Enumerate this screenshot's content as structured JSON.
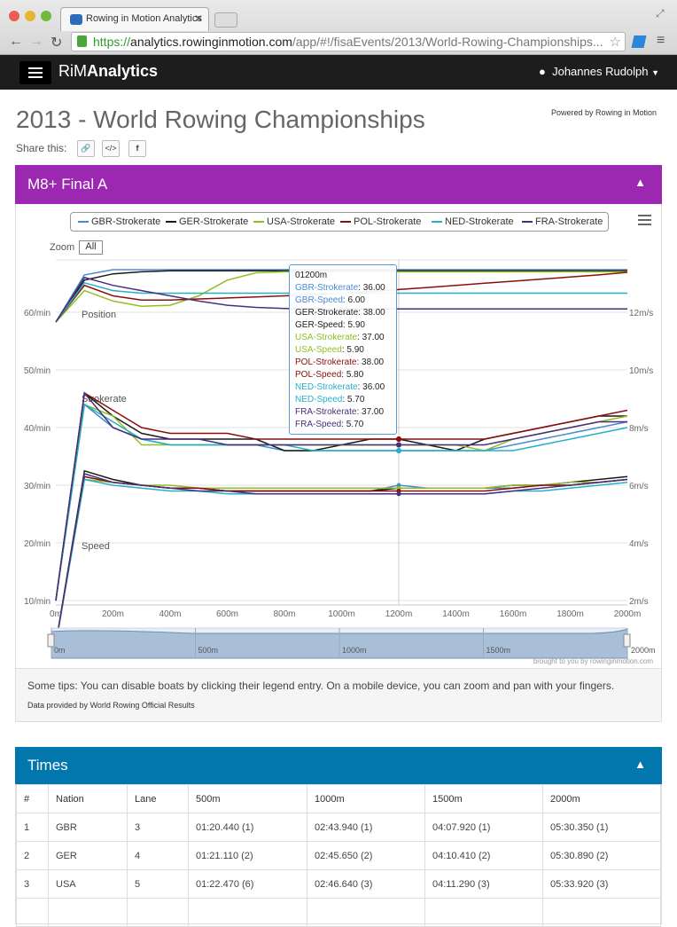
{
  "browser": {
    "tab_title": "Rowing in Motion Analytics",
    "url_scheme": "https://",
    "url_host": "analytics.rowinginmotion.com",
    "url_path": "/app/#!/fisaEvents/2013/World-Rowing-Championships..."
  },
  "nav": {
    "brand_light": "RiM",
    "brand_bold": "Analytics",
    "user": "Johannes Rudolph"
  },
  "page": {
    "title": "2013 - World Rowing Championships",
    "powered_by": "Powered by Rowing in Motion",
    "share_label": "Share this:"
  },
  "race_panel": {
    "title": "M8+ Final A"
  },
  "colors": {
    "GBR": "#4a8bd0",
    "GER": "#1a1a1a",
    "USA": "#8fbf22",
    "POL": "#8b0e0e",
    "NED": "#26b0c8",
    "FRA": "#4b2e7a",
    "purple": "#9c27b0",
    "blue": "#0277ad"
  },
  "chart_data": {
    "type": "line",
    "x": [
      0,
      100,
      200,
      300,
      400,
      500,
      600,
      700,
      800,
      900,
      1000,
      1100,
      1200,
      1300,
      1400,
      1500,
      1600,
      1700,
      1800,
      1900,
      2000
    ],
    "xlabels": [
      "0m",
      "200m",
      "400m",
      "600m",
      "800m",
      "1000m",
      "1200m",
      "1400m",
      "1600m",
      "1800m",
      "2000m"
    ],
    "ylabels_left": [
      "60/min",
      "50/min",
      "40/min",
      "30/min",
      "20/min",
      "10/min"
    ],
    "ylabels_right": [
      "12m/s",
      "10m/s",
      "8m/s",
      "6m/s",
      "4m/s",
      "2m/s"
    ],
    "annotations": [
      "Position",
      "Strokerate",
      "Speed"
    ],
    "zoom_label": "Zoom",
    "zoom_button": "All",
    "legend": [
      "GBR-Strokerate",
      "GER-Strokerate",
      "USA-Strokerate",
      "POL-Strokerate",
      "NED-Strokerate",
      "FRA-Strokerate"
    ],
    "series": [
      {
        "name": "GBR",
        "position": [
          0,
          0.9,
          1.0,
          1.0,
          1.0,
          1.0,
          1.0,
          1.0,
          1.0,
          1.0,
          1.0,
          1.0,
          1.0,
          1.0,
          1.0,
          1.0,
          1.0,
          1.0,
          1.0,
          1.0,
          1.0
        ],
        "strokerate": [
          10,
          44,
          40,
          38,
          37,
          37,
          37,
          37,
          36,
          36,
          36,
          36,
          36,
          36,
          36,
          36,
          37,
          38,
          39,
          40,
          41
        ],
        "speed": [
          0.5,
          6.3,
          6.1,
          6.0,
          5.9,
          5.9,
          5.8,
          5.8,
          5.8,
          5.8,
          5.8,
          5.8,
          6.0,
          5.9,
          5.9,
          5.9,
          5.9,
          6.0,
          6.0,
          6.1,
          6.2
        ]
      },
      {
        "name": "GER",
        "position": [
          0,
          0.8,
          0.92,
          0.96,
          0.98,
          0.98,
          0.98,
          0.98,
          0.98,
          0.98,
          0.98,
          0.98,
          0.98,
          0.98,
          0.98,
          0.98,
          0.98,
          0.98,
          0.98,
          0.98,
          0.98
        ],
        "strokerate": [
          10,
          46,
          42,
          39,
          38,
          38,
          38,
          38,
          36,
          36,
          37,
          38,
          38,
          37,
          36,
          38,
          39,
          40,
          41,
          42,
          42
        ],
        "speed": [
          0.5,
          6.5,
          6.2,
          6.0,
          5.9,
          5.9,
          5.8,
          5.8,
          5.8,
          5.8,
          5.8,
          5.8,
          5.9,
          5.9,
          5.9,
          5.9,
          6.0,
          6.0,
          6.1,
          6.2,
          6.3
        ]
      },
      {
        "name": "USA",
        "position": [
          0,
          0.6,
          0.4,
          0.3,
          0.32,
          0.5,
          0.8,
          0.94,
          0.96,
          0.96,
          0.96,
          0.96,
          0.96,
          0.96,
          0.96,
          0.96,
          0.96,
          0.96,
          0.96,
          0.96,
          0.96
        ],
        "strokerate": [
          10,
          44,
          42,
          37,
          37,
          37,
          37,
          37,
          37,
          37,
          37,
          37,
          37,
          37,
          37,
          36,
          38,
          39,
          40,
          41,
          42
        ],
        "speed": [
          0.5,
          6.2,
          6.1,
          6.0,
          6.0,
          5.9,
          5.9,
          5.9,
          5.9,
          5.9,
          5.9,
          5.9,
          5.9,
          5.9,
          5.9,
          5.9,
          6.0,
          6.0,
          6.1,
          6.1,
          6.2
        ]
      },
      {
        "name": "POL",
        "position": [
          0,
          0.7,
          0.5,
          0.42,
          0.42,
          0.44,
          0.46,
          0.48,
          0.5,
          0.52,
          0.55,
          0.58,
          0.62,
          0.66,
          0.7,
          0.74,
          0.78,
          0.82,
          0.86,
          0.9,
          0.95
        ],
        "strokerate": [
          10,
          46,
          43,
          40,
          39,
          39,
          39,
          38,
          38,
          38,
          38,
          38,
          38,
          38,
          38,
          38,
          39,
          40,
          41,
          42,
          43
        ],
        "speed": [
          0.5,
          6.3,
          6.1,
          6.0,
          5.9,
          5.9,
          5.8,
          5.8,
          5.8,
          5.8,
          5.8,
          5.8,
          5.8,
          5.8,
          5.8,
          5.8,
          5.9,
          6.0,
          6.0,
          6.1,
          6.2
        ]
      },
      {
        "name": "NED",
        "position": [
          0,
          0.75,
          0.6,
          0.55,
          0.55,
          0.55,
          0.55,
          0.55,
          0.55,
          0.55,
          0.55,
          0.55,
          0.55,
          0.55,
          0.55,
          0.55,
          0.55,
          0.55,
          0.55,
          0.55,
          0.55
        ],
        "strokerate": [
          10,
          44,
          41,
          38,
          37,
          37,
          37,
          37,
          37,
          36,
          36,
          36,
          36,
          36,
          36,
          36,
          36,
          37,
          38,
          39,
          40
        ],
        "speed": [
          0.5,
          6.2,
          6.0,
          5.9,
          5.8,
          5.8,
          5.7,
          5.7,
          5.7,
          5.7,
          5.7,
          5.7,
          5.7,
          5.7,
          5.7,
          5.7,
          5.8,
          5.8,
          5.9,
          6.0,
          6.1
        ]
      },
      {
        "name": "FRA",
        "position": [
          0,
          0.85,
          0.7,
          0.6,
          0.5,
          0.4,
          0.32,
          0.28,
          0.26,
          0.25,
          0.25,
          0.25,
          0.25,
          0.25,
          0.25,
          0.25,
          0.25,
          0.25,
          0.25,
          0.25,
          0.25
        ],
        "strokerate": [
          10,
          46,
          40,
          38,
          38,
          38,
          37,
          37,
          37,
          37,
          37,
          37,
          37,
          37,
          37,
          37,
          38,
          39,
          40,
          41,
          41
        ],
        "speed": [
          0.5,
          6.4,
          6.1,
          6.0,
          5.9,
          5.8,
          5.8,
          5.7,
          5.7,
          5.7,
          5.7,
          5.7,
          5.7,
          5.7,
          5.7,
          5.7,
          5.8,
          5.9,
          6.0,
          6.1,
          6.2
        ]
      }
    ],
    "tooltip": {
      "header": "01200m",
      "rows": [
        {
          "label": "GBR-Strokerate",
          "value": "36.00",
          "team": "GBR"
        },
        {
          "label": "GBR-Speed",
          "value": "6.00",
          "team": "GBR"
        },
        {
          "label": "GER-Strokerate",
          "value": "38.00",
          "team": "GER"
        },
        {
          "label": "GER-Speed",
          "value": "5.90",
          "team": "GER"
        },
        {
          "label": "USA-Strokerate",
          "value": "37.00",
          "team": "USA"
        },
        {
          "label": "USA-Speed",
          "value": "5.90",
          "team": "USA"
        },
        {
          "label": "POL-Strokerate",
          "value": "38.00",
          "team": "POL"
        },
        {
          "label": "POL-Speed",
          "value": "5.80",
          "team": "POL"
        },
        {
          "label": "NED-Strokerate",
          "value": "36.00",
          "team": "NED"
        },
        {
          "label": "NED-Speed",
          "value": "5.70",
          "team": "NED"
        },
        {
          "label": "FRA-Strokerate",
          "value": "37.00",
          "team": "FRA"
        },
        {
          "label": "FRA-Speed",
          "value": "5.70",
          "team": "FRA"
        }
      ]
    },
    "navigator_labels": [
      "0m",
      "500m",
      "1000m",
      "1500m",
      "2000m"
    ],
    "credit": "brought to you by rowinginmotion.com"
  },
  "tips": {
    "text": "Some tips: You can disable boats by clicking their legend entry. On a mobile device, you can zoom and pan with your fingers.",
    "source_prefix": "Data provided by",
    "source_link": "World Rowing Official Results"
  },
  "times_panel": {
    "title": "Times",
    "columns": [
      "#",
      "Nation",
      "Lane",
      "500m",
      "1000m",
      "1500m",
      "2000m"
    ],
    "rows": [
      [
        "1",
        "GBR",
        "3",
        "01:20.440 (1)",
        "02:43.940 (1)",
        "04:07.920 (1)",
        "05:30.350 (1)"
      ],
      [
        "2",
        "GER",
        "4",
        "01:21.110 (2)",
        "02:45.650 (2)",
        "04:10.410 (2)",
        "05:30.890 (2)"
      ],
      [
        "3",
        "USA",
        "5",
        "01:22.470 (6)",
        "02:46.640 (3)",
        "04:11.290 (3)",
        "05:33.920 (3)"
      ]
    ]
  }
}
